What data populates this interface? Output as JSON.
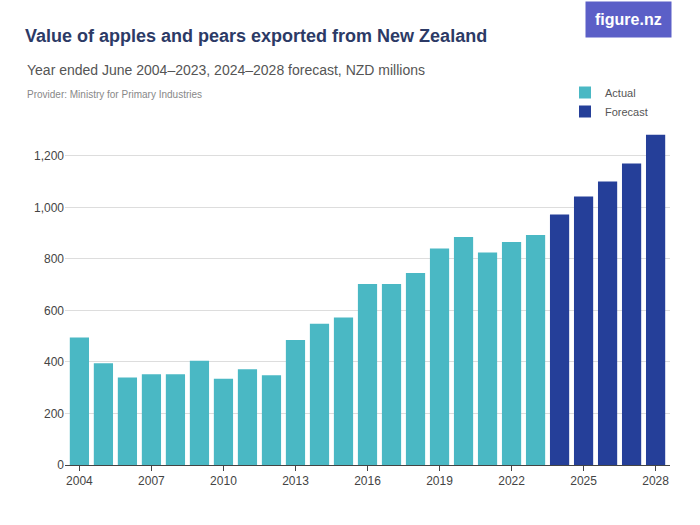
{
  "chart_data": {
    "type": "bar",
    "title": "Value of apples and pears exported from New Zealand",
    "subtitle": "Year ended June 2004–2023, 2024–2028 forecast, NZD millions",
    "source": "Provider: Ministry for Primary Industries",
    "logo": "figure.nz",
    "x": [
      2004,
      2005,
      2006,
      2007,
      2008,
      2009,
      2010,
      2011,
      2012,
      2013,
      2014,
      2015,
      2016,
      2017,
      2018,
      2019,
      2020,
      2021,
      2022,
      2023,
      2024,
      2025,
      2026,
      2027,
      2028
    ],
    "series": [
      {
        "name": "Actual",
        "color": "#4ab8c4",
        "values": [
          495,
          395,
          340,
          352,
          352,
          405,
          335,
          372,
          348,
          485,
          548,
          572,
          702,
          702,
          745,
          840,
          885,
          825,
          865,
          893,
          null,
          null,
          null,
          null,
          null
        ]
      },
      {
        "name": "Forecast",
        "color": "#253f99",
        "values": [
          null,
          null,
          null,
          null,
          null,
          null,
          null,
          null,
          null,
          null,
          null,
          null,
          null,
          null,
          null,
          null,
          null,
          null,
          null,
          null,
          972,
          1042,
          1100,
          1170,
          1282
        ]
      }
    ],
    "xlim": [
      2003.4,
      2028.6
    ],
    "xticks": [
      2004,
      2007,
      2010,
      2013,
      2016,
      2019,
      2022,
      2025,
      2028
    ],
    "ylim": [
      0,
      1300
    ],
    "yticks": [
      0,
      200,
      400,
      600,
      800,
      {
        "value": 1000,
        "label": "1,000"
      },
      {
        "value": 1200,
        "label": "1,200"
      }
    ],
    "grid": true,
    "legend": "top right"
  }
}
